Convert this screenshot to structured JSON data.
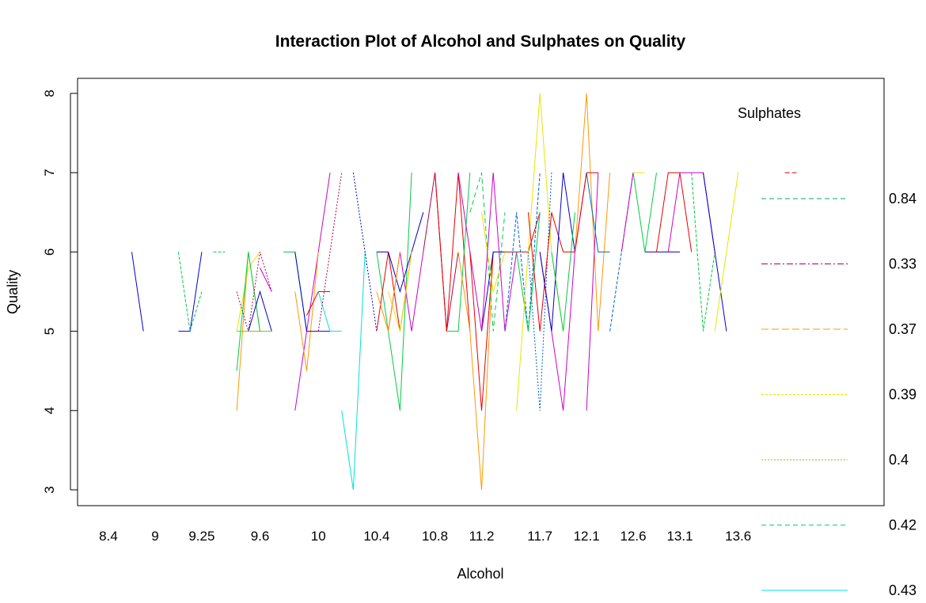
{
  "chart_data": {
    "type": "line",
    "title": "Interaction Plot of Alcohol and Sulphates on Quality",
    "xlabel": "Alcohol",
    "ylabel": "Quality",
    "ylim": [
      3,
      8
    ],
    "y_ticks": [
      "3",
      "4",
      "5",
      "6",
      "7",
      "8"
    ],
    "x_tick_labels": [
      "8.4",
      "9",
      "9.25",
      "9.6",
      "10",
      "10.4",
      "10.8",
      "11.2",
      "11.7",
      "12.1",
      "12.6",
      "13.1",
      "13.6"
    ],
    "x_tick_positions": [
      1,
      5,
      9,
      14,
      19,
      24,
      29,
      33,
      38,
      42,
      46,
      50,
      55
    ],
    "x_level_count": 65,
    "legend": {
      "title": "Sulphates",
      "position": "right",
      "entries": [
        {
          "label": "0.84",
          "color": "#00a86b",
          "dash": "6,4"
        },
        {
          "label": "0.33",
          "color": "#b00050",
          "dash": "8,3,2,3"
        },
        {
          "label": "0.37",
          "color": "#ff9900",
          "dash": "9,4"
        },
        {
          "label": "0.39",
          "color": "#e6e600",
          "dash": "3,2"
        },
        {
          "label": "0.4",
          "color": "#66cc00",
          "dash": "2,2"
        },
        {
          "label": "0.42",
          "color": "#00dd66",
          "dash": "6,4"
        },
        {
          "label": "0.43",
          "color": "#00e0e0",
          "dash": ""
        }
      ]
    },
    "series": [
      {
        "color": "#0000cc",
        "dash": "",
        "x": [
          3,
          4
        ],
        "values": [
          6,
          5
        ]
      },
      {
        "color": "#0000cc",
        "dash": "",
        "x": [
          7,
          8,
          9
        ],
        "values": [
          5,
          5,
          6
        ]
      },
      {
        "color": "#00cc44",
        "dash": "4,2",
        "x": [
          7,
          8,
          9
        ],
        "values": [
          6,
          5,
          5.5
        ]
      },
      {
        "color": "#00cc44",
        "dash": "4,2",
        "x": [
          10,
          11
        ],
        "values": [
          6,
          6
        ]
      },
      {
        "color": "#ff9900",
        "dash": "",
        "x": [
          12,
          13,
          14
        ],
        "values": [
          4,
          6,
          5
        ]
      },
      {
        "color": "#e6e600",
        "dash": "",
        "x": [
          12,
          13,
          14
        ],
        "values": [
          5,
          5.8,
          6
        ]
      },
      {
        "color": "#00cc44",
        "dash": "",
        "x": [
          12,
          13,
          14
        ],
        "values": [
          4.5,
          6,
          5
        ]
      },
      {
        "color": "#b00050",
        "dash": "2,2",
        "x": [
          12,
          13,
          14,
          15
        ],
        "values": [
          5.5,
          5,
          6,
          5.5
        ]
      },
      {
        "color": "#0000cc",
        "dash": "",
        "x": [
          13,
          14,
          15
        ],
        "values": [
          5,
          5.5,
          5
        ]
      },
      {
        "color": "#66cc00",
        "dash": "",
        "x": [
          12,
          13,
          14,
          15
        ],
        "values": [
          5,
          5,
          5,
          5
        ]
      },
      {
        "color": "#cc00cc",
        "dash": "",
        "x": [
          14,
          15
        ],
        "values": [
          5.8,
          5.5
        ]
      },
      {
        "color": "#00cc44",
        "dash": "",
        "x": [
          16,
          17,
          18
        ],
        "values": [
          6,
          6,
          5
        ]
      },
      {
        "color": "#cc00cc",
        "dash": "",
        "x": [
          17,
          18,
          19,
          20
        ],
        "values": [
          4,
          5,
          6,
          7
        ]
      },
      {
        "color": "#ff9900",
        "dash": "",
        "x": [
          17,
          18,
          19
        ],
        "values": [
          5.5,
          4.5,
          6
        ]
      },
      {
        "color": "#0000cc",
        "dash": "",
        "x": [
          17,
          18,
          19,
          20
        ],
        "values": [
          6,
          5,
          5,
          5
        ]
      },
      {
        "color": "#e60000",
        "dash": "",
        "x": [
          18,
          19,
          20
        ],
        "values": [
          5.2,
          5.5,
          5.5
        ]
      },
      {
        "color": "#00e0e0",
        "dash": "",
        "x": [
          19,
          20,
          21
        ],
        "values": [
          5.5,
          5,
          5
        ]
      },
      {
        "color": "#b00050",
        "dash": "2,2",
        "x": [
          19,
          20,
          21
        ],
        "values": [
          5,
          6,
          7
        ]
      },
      {
        "color": "#00e0e0",
        "dash": "",
        "x": [
          21,
          22,
          23
        ],
        "values": [
          4,
          3,
          6
        ]
      },
      {
        "color": "#0000cc",
        "dash": "2,2",
        "x": [
          22,
          23,
          24
        ],
        "values": [
          7,
          6,
          5
        ]
      },
      {
        "color": "#00cc44",
        "dash": "",
        "x": [
          24,
          25,
          26,
          27
        ],
        "values": [
          6,
          5,
          4,
          7
        ]
      },
      {
        "color": "#e60000",
        "dash": "",
        "x": [
          24,
          25,
          26,
          27
        ],
        "values": [
          5,
          6,
          5,
          6
        ]
      },
      {
        "color": "#0000cc",
        "dash": "",
        "x": [
          24,
          25,
          26,
          27,
          28
        ],
        "values": [
          6,
          6,
          5.5,
          6,
          6.5
        ]
      },
      {
        "color": "#cc00cc",
        "dash": "",
        "x": [
          25,
          26,
          27,
          28
        ],
        "values": [
          5,
          6,
          5,
          6
        ]
      },
      {
        "color": "#e6e600",
        "dash": "",
        "x": [
          25,
          26,
          27
        ],
        "values": [
          5.5,
          5,
          6
        ]
      },
      {
        "color": "#ff9900",
        "dash": "",
        "x": [
          24,
          25,
          26
        ],
        "values": [
          5.5,
          5,
          6
        ]
      },
      {
        "color": "#b00050",
        "dash": "",
        "x": [
          28,
          29,
          30,
          31
        ],
        "values": [
          6,
          7,
          5,
          6
        ]
      },
      {
        "color": "#e60000",
        "dash": "",
        "x": [
          29,
          30,
          31,
          32
        ],
        "values": [
          7,
          5,
          7,
          5
        ]
      },
      {
        "color": "#00cc44",
        "dash": "",
        "x": [
          30,
          31,
          32
        ],
        "values": [
          5,
          5,
          7
        ]
      },
      {
        "color": "#cc00cc",
        "dash": "",
        "x": [
          31,
          32,
          33
        ],
        "values": [
          7,
          6,
          5
        ]
      },
      {
        "color": "#ff9900",
        "dash": "",
        "x": [
          31,
          32,
          33,
          34
        ],
        "values": [
          6,
          5,
          3,
          6
        ]
      },
      {
        "color": "#e60000",
        "dash": "",
        "x": [
          32,
          33,
          34
        ],
        "values": [
          6,
          4,
          6
        ]
      },
      {
        "color": "#00cc44",
        "dash": "6,4",
        "x": [
          32,
          33,
          34,
          35
        ],
        "values": [
          6.5,
          7,
          5,
          6.5
        ]
      },
      {
        "color": "#0000cc",
        "dash": "",
        "x": [
          33,
          34,
          35
        ],
        "values": [
          5,
          6,
          6
        ]
      },
      {
        "color": "#e6e600",
        "dash": "",
        "x": [
          33,
          34,
          35
        ],
        "values": [
          6.5,
          5.5,
          6
        ]
      },
      {
        "color": "#cc00cc",
        "dash": "",
        "x": [
          33,
          34,
          35,
          36
        ],
        "values": [
          5,
          7,
          5,
          6
        ]
      },
      {
        "color": "#e60000",
        "dash": "",
        "x": [
          35,
          36,
          37,
          38
        ],
        "values": [
          6,
          6,
          6,
          6.5
        ]
      },
      {
        "color": "#0066cc",
        "dash": "4,2",
        "x": [
          35,
          36,
          37,
          38
        ],
        "values": [
          5,
          6.5,
          5,
          7
        ]
      },
      {
        "color": "#00cc44",
        "dash": "",
        "x": [
          36,
          37,
          38
        ],
        "values": [
          6,
          5,
          6.5
        ]
      },
      {
        "color": "#e6e600",
        "dash": "",
        "x": [
          36,
          37,
          38,
          39,
          40
        ],
        "values": [
          4,
          6,
          8,
          6,
          5
        ]
      },
      {
        "color": "#0066cc",
        "dash": "2,2",
        "x": [
          37,
          38,
          39
        ],
        "values": [
          6,
          4,
          7
        ]
      },
      {
        "color": "#e60000",
        "dash": "",
        "x": [
          37,
          38,
          39,
          40
        ],
        "values": [
          6.5,
          5,
          6.5,
          6
        ]
      },
      {
        "color": "#cc00cc",
        "dash": "",
        "x": [
          38,
          39,
          40,
          41,
          42
        ],
        "values": [
          6,
          5,
          4,
          6,
          7
        ]
      },
      {
        "color": "#0000cc",
        "dash": "",
        "x": [
          38,
          39,
          40,
          41
        ],
        "values": [
          6,
          5,
          7,
          6
        ]
      },
      {
        "color": "#00cc44",
        "dash": "",
        "x": [
          39,
          40,
          41
        ],
        "values": [
          6,
          5,
          6.5
        ]
      },
      {
        "color": "#ff9900",
        "dash": "",
        "x": [
          41,
          42,
          43,
          44
        ],
        "values": [
          6,
          8,
          5,
          7
        ]
      },
      {
        "color": "#cc00cc",
        "dash": "",
        "x": [
          42,
          43
        ],
        "values": [
          4,
          7
        ]
      },
      {
        "color": "#e60000",
        "dash": "",
        "x": [
          40,
          41,
          42,
          43
        ],
        "values": [
          6,
          6,
          7,
          7
        ]
      },
      {
        "color": "#0066cc",
        "dash": "",
        "x": [
          42,
          43,
          44
        ],
        "values": [
          7,
          6,
          6
        ]
      },
      {
        "color": "#0066cc",
        "dash": "4,2",
        "x": [
          44,
          45,
          46
        ],
        "values": [
          5,
          6,
          7
        ]
      },
      {
        "color": "#cc00cc",
        "dash": "",
        "x": [
          45,
          46
        ],
        "values": [
          6,
          7
        ]
      },
      {
        "color": "#e6e600",
        "dash": "",
        "x": [
          46,
          47
        ],
        "values": [
          7,
          7
        ]
      },
      {
        "color": "#00cc44",
        "dash": "",
        "x": [
          46,
          47,
          48
        ],
        "values": [
          7,
          6,
          7
        ]
      },
      {
        "color": "#0000cc",
        "dash": "",
        "x": [
          47,
          48,
          49,
          50
        ],
        "values": [
          6,
          6,
          6,
          6
        ]
      },
      {
        "color": "#e60000",
        "dash": "",
        "x": [
          48,
          49,
          50,
          51
        ],
        "values": [
          6,
          7,
          7,
          6
        ]
      },
      {
        "color": "#cc00cc",
        "dash": "",
        "x": [
          49,
          50,
          51,
          52,
          53
        ],
        "values": [
          6,
          7,
          7,
          7,
          6
        ]
      },
      {
        "color": "#00cc44",
        "dash": "4,2",
        "x": [
          51,
          52,
          53
        ],
        "values": [
          7,
          5,
          6
        ]
      },
      {
        "color": "#0000cc",
        "dash": "",
        "x": [
          52,
          53,
          54
        ],
        "values": [
          7,
          6,
          5
        ]
      },
      {
        "color": "#e6e600",
        "dash": "",
        "x": [
          53,
          54,
          55
        ],
        "values": [
          5,
          6,
          7
        ]
      },
      {
        "color": "#e60000",
        "dash": "6,3",
        "x": [
          59,
          60
        ],
        "values": [
          7,
          7
        ]
      }
    ]
  }
}
